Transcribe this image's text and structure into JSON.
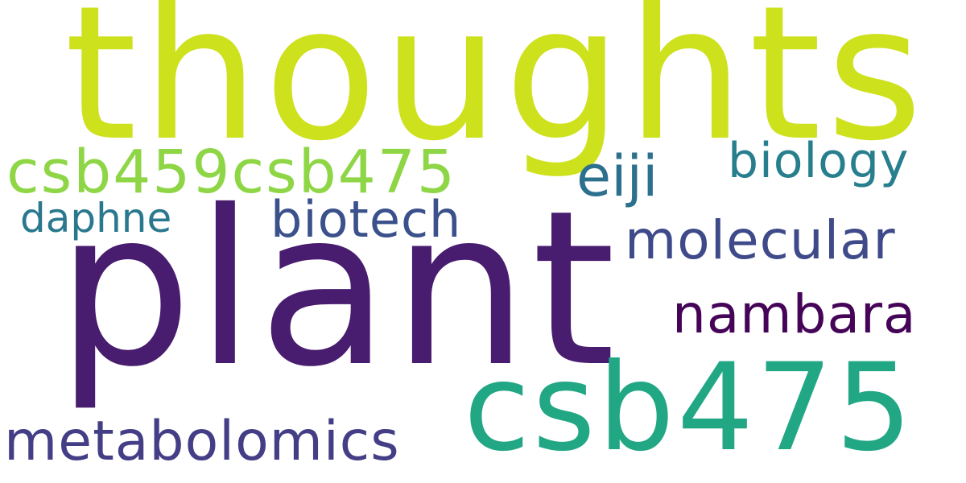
{
  "words": {
    "thoughts": {
      "text": "thoughts",
      "color": "#cde11d"
    },
    "plant": {
      "text": "plant",
      "color": "#481c6e"
    },
    "csb475": {
      "text": "csb475",
      "color": "#22a785"
    },
    "csb459csb475": {
      "text": "csb459csb475",
      "color": "#8ed645"
    },
    "eiji": {
      "text": "eiji",
      "color": "#2d708e"
    },
    "biology": {
      "text": "biology",
      "color": "#277f8e"
    },
    "daphne": {
      "text": "daphne",
      "color": "#2a788e"
    },
    "biotech": {
      "text": "biotech",
      "color": "#3b518b"
    },
    "molecular": {
      "text": "molecular",
      "color": "#3e4a89"
    },
    "nambara": {
      "text": "nambara",
      "color": "#450457"
    },
    "metabolomics": {
      "text": "metabolomics",
      "color": "#433e85"
    }
  }
}
